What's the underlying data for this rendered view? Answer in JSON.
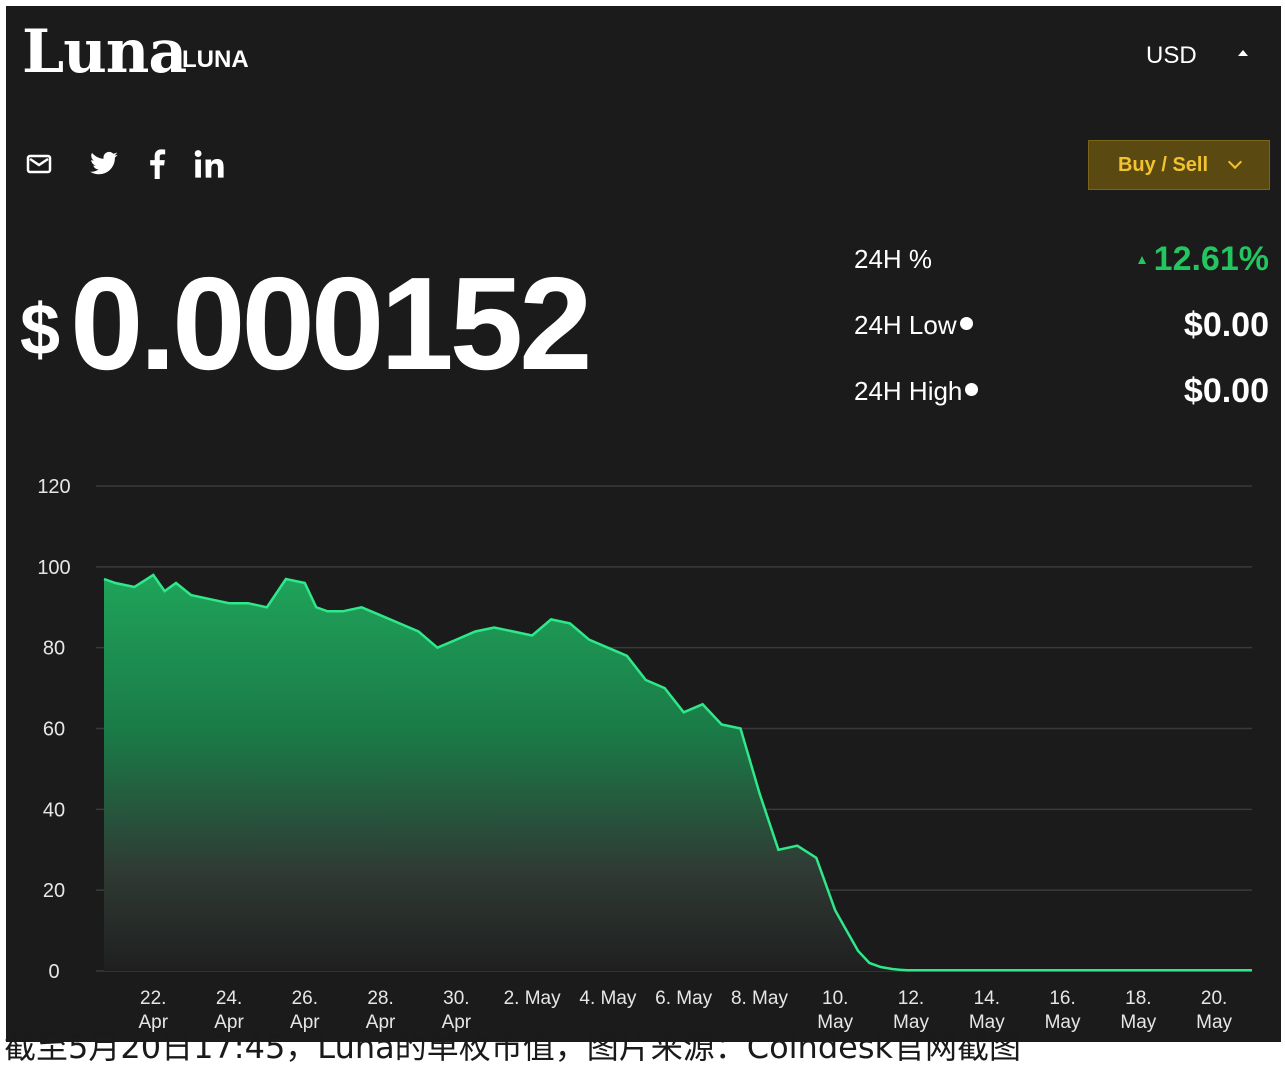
{
  "header": {
    "coin_name": "Luna",
    "coin_symbol": "LUNA",
    "currency": "USD"
  },
  "share_icons": [
    "mail-icon",
    "twitter-icon",
    "facebook-icon",
    "linkedin-icon"
  ],
  "actions": {
    "buy_sell_label": "Buy / Sell"
  },
  "price": {
    "currency_symbol": "$",
    "value": "0.000152"
  },
  "stats": {
    "change_label": "24H %",
    "change_value": "12.61%",
    "change_direction": "up",
    "low_label": "24H Low",
    "low_value": "$0.00",
    "high_label": "24H High",
    "high_value": "$0.00"
  },
  "colors": {
    "background": "#1b1b1b",
    "line": "#2ee88a",
    "area_top": "#1f9d55",
    "positive": "#22c55e",
    "buy_sell_text": "#f2c230",
    "buy_sell_bg": "#5a4a12"
  },
  "chart_data": {
    "type": "area",
    "ylim": [
      0,
      120
    ],
    "y_ticks": [
      0,
      20,
      40,
      60,
      80,
      100,
      120
    ],
    "x_tick_labels": [
      [
        "22.",
        "Apr"
      ],
      [
        "24.",
        "Apr"
      ],
      [
        "26.",
        "Apr"
      ],
      [
        "28.",
        "Apr"
      ],
      [
        "30.",
        "Apr"
      ],
      [
        "2. May",
        ""
      ],
      [
        "4. May",
        ""
      ],
      [
        "6. May",
        ""
      ],
      [
        "8. May",
        ""
      ],
      [
        "10.",
        "May"
      ],
      [
        "12.",
        "May"
      ],
      [
        "14.",
        "May"
      ],
      [
        "16.",
        "May"
      ],
      [
        "18.",
        "May"
      ],
      [
        "20.",
        "May"
      ]
    ],
    "x_tick_days": [
      2,
      4,
      6,
      8,
      10,
      12,
      14,
      16,
      18,
      20,
      22,
      24,
      26,
      28,
      30
    ],
    "x_range_days": [
      0.7,
      31
    ],
    "series": [
      {
        "x_days": [
          0.7,
          1.0,
          1.5,
          2.0,
          2.3,
          2.6,
          3.0,
          3.5,
          4.0,
          4.5,
          5.0,
          5.5,
          6.0,
          6.3,
          6.6,
          7.0,
          7.5,
          8.0,
          8.5,
          9.0,
          9.5,
          10.0,
          10.5,
          11.0,
          11.5,
          12.0,
          12.5,
          13.0,
          13.5,
          14.0,
          14.5,
          15.0,
          15.5,
          16.0,
          16.5,
          17.0,
          17.5,
          18.0,
          18.5,
          19.0,
          19.5,
          20.0,
          20.3,
          20.6,
          20.9,
          21.2,
          21.5,
          21.7,
          21.9,
          22.0,
          22.2,
          22.4,
          22.6,
          22.8,
          23.0,
          23.2,
          23.4,
          24.0,
          25.0,
          26.0,
          27.0,
          28.0,
          29.0,
          30.0,
          31.0
        ],
        "values": [
          97,
          96,
          95,
          98,
          94,
          96,
          93,
          92,
          91,
          91,
          90,
          97,
          96,
          90,
          89,
          89,
          90,
          88,
          86,
          84,
          80,
          82,
          84,
          85,
          84,
          83,
          87,
          86,
          82,
          80,
          78,
          72,
          70,
          64,
          66,
          61,
          60,
          44,
          30,
          31,
          28,
          15,
          10,
          5,
          2,
          1,
          0.5,
          0.3,
          0.2,
          0.2,
          0.2,
          0.2,
          0.2,
          0.2,
          0.2,
          0.2,
          0.2,
          0.2,
          0.2,
          0.2,
          0.2,
          0.2,
          0.2,
          0.2,
          0.2
        ]
      }
    ]
  },
  "caption": "截至5月20日17:45，Luna的单枚市值，图片来源：Coindesk官网截图"
}
